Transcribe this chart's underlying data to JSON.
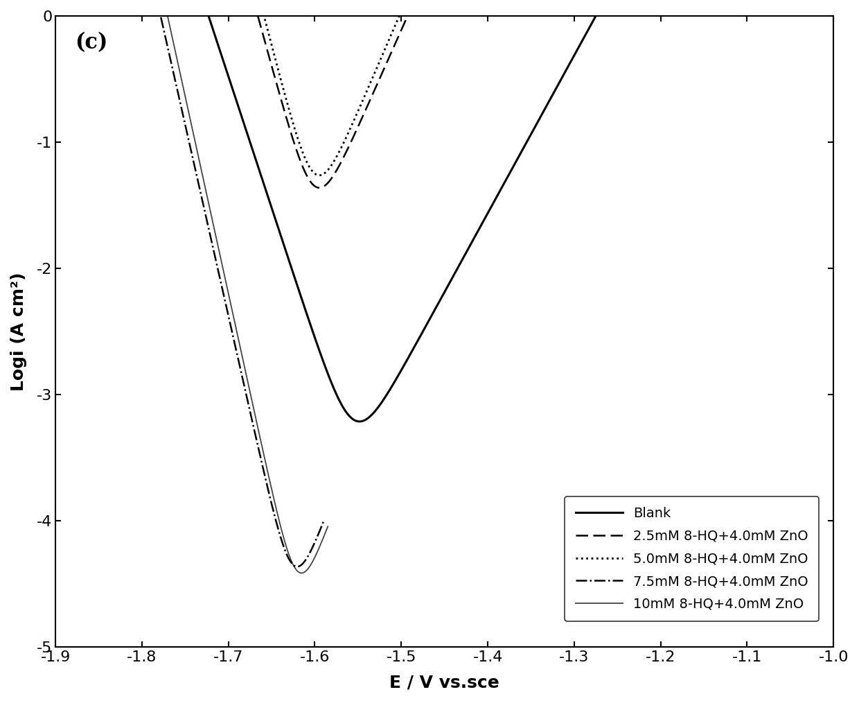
{
  "title_label": "(c)",
  "xlabel": "E / V vs.sce",
  "ylabel": "Logi (A cm²)",
  "xlim": [
    -1.9,
    -1.0
  ],
  "ylim": [
    -5,
    0
  ],
  "xticks": [
    -1.9,
    -1.8,
    -1.7,
    -1.6,
    -1.5,
    -1.4,
    -1.3,
    -1.2,
    -1.1,
    -1.0
  ],
  "yticks": [
    -5,
    -4,
    -3,
    -2,
    -1,
    0
  ],
  "legend_entries": [
    "Blank",
    "2.5mM 8-HQ+4.0mM ZnO",
    "5.0mM 8-HQ+4.0mM ZnO",
    "7.5mM 8-HQ+4.0mM ZnO",
    "10mM 8-HQ+4.0mM ZnO"
  ],
  "background_color": "#ffffff",
  "font_size_label": 18,
  "font_size_tick": 16,
  "font_size_title": 22
}
